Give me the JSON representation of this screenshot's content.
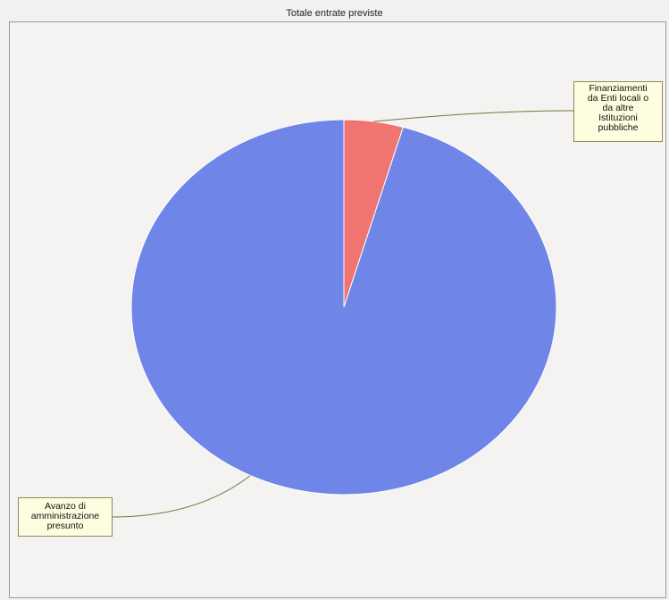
{
  "chart_data": {
    "type": "pie",
    "title": "Totale entrate previste",
    "slices": [
      {
        "label": "Finanziamenti da Enti locali o da altre Istituzioni pubbliche",
        "label_lines": [
          "Finanziamenti",
          "da Enti locali o",
          "da altre",
          "Istituzioni",
          "pubbliche"
        ],
        "share": 0.045,
        "color": "#f07470"
      },
      {
        "label": "Avanzo di amministrazione presunto",
        "label_lines": [
          "Avanzo di",
          "amministrazione",
          "presunto"
        ],
        "share": 0.955,
        "color": "#6f86e8"
      }
    ],
    "start_angle_deg": 0,
    "direction": "clockwise",
    "legend": "none",
    "grid": false
  }
}
